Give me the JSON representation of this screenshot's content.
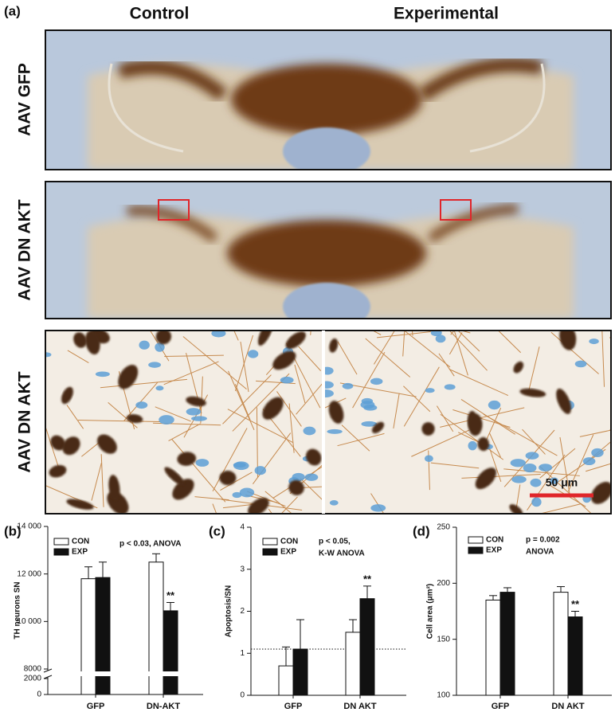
{
  "panel_labels": [
    "(a)",
    "(b)",
    "(c)",
    "(d)"
  ],
  "columns": [
    "Control",
    "Experimental"
  ],
  "rows": [
    "AAV GFP",
    "AAV DN AKT",
    "AAV DN AKT"
  ],
  "scale_bar": "50 μm",
  "chart_data": [
    {
      "type": "bar",
      "y_label": "TH neurons SN",
      "categories": [
        "GFP",
        "DN-AKT"
      ],
      "series": [
        {
          "name": "CON",
          "color": "#ffffff",
          "values": [
            11800,
            12500
          ],
          "errors": [
            500,
            350
          ]
        },
        {
          "name": "EXP",
          "color": "#111111",
          "values": [
            11850,
            10450
          ],
          "errors": [
            650,
            350
          ]
        }
      ],
      "ylim": [
        0,
        14000
      ],
      "ybreak": [
        2000,
        8000
      ],
      "yticks": [
        0,
        2000,
        8000,
        {
          "value": 10000,
          "label": "10 000"
        },
        {
          "value": 12000,
          "label": "12 000"
        },
        {
          "value": 14000,
          "label": "14 000"
        }
      ],
      "annotation": [
        "p < 0.03, ANOVA"
      ],
      "star": "**"
    },
    {
      "type": "bar",
      "y_label": "Apoptosis/SN",
      "categories": [
        "GFP",
        "DN AKT"
      ],
      "series": [
        {
          "name": "CON",
          "color": "#ffffff",
          "values": [
            0.7,
            1.5
          ],
          "errors": [
            0.45,
            0.3
          ]
        },
        {
          "name": "EXP",
          "color": "#111111",
          "values": [
            1.1,
            2.3
          ],
          "errors": [
            0.7,
            0.3
          ]
        }
      ],
      "ylim": [
        0,
        4
      ],
      "yticks": [
        0,
        1,
        2,
        3,
        4
      ],
      "reference_line": 1.1,
      "annotation": [
        "p < 0.05,",
        "K-W ANOVA"
      ],
      "star": "**"
    },
    {
      "type": "bar",
      "y_label": "Cell area (μm²)",
      "categories": [
        "GFP",
        "DN AKT"
      ],
      "series": [
        {
          "name": "CON",
          "color": "#ffffff",
          "values": [
            185,
            192
          ],
          "errors": [
            4,
            5
          ]
        },
        {
          "name": "EXP",
          "color": "#111111",
          "values": [
            192,
            170
          ],
          "errors": [
            4,
            5
          ]
        }
      ],
      "ylim": [
        100,
        250
      ],
      "yticks": [
        100,
        150,
        200,
        250
      ],
      "annotation": [
        "p = 0.002",
        "ANOVA"
      ],
      "star": "**"
    }
  ]
}
